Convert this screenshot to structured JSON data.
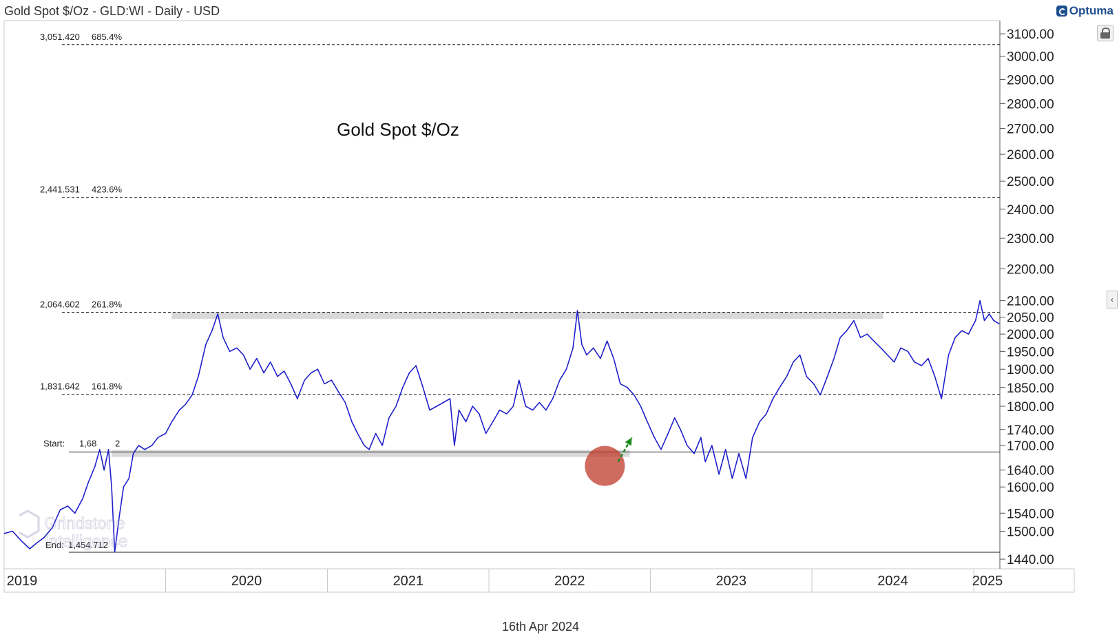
{
  "header": {
    "title": "Gold Spot $/Oz - GLD:WI - Daily - USD",
    "brand": "Optuma"
  },
  "footer": {
    "date": "16th Apr 2024"
  },
  "watermark": {
    "text_line1": "Grindstone",
    "text_line2": "Intelligence"
  },
  "icons": {
    "lock": "lock-icon",
    "collapse": "chevron-left-icon",
    "brand": "optuma-logo-icon"
  },
  "colors": {
    "price_line": "#1f1fcc",
    "fib_line": "#222222",
    "zone_fill": "#d9d9d9",
    "circle_fill": "#c0392b",
    "arrow": "#1a8a1a"
  },
  "chart_data": {
    "type": "line",
    "title": "Gold Spot $/Oz",
    "xlabel": "",
    "ylabel": "",
    "y_scale": "log",
    "ylim": [
      1420,
      3160
    ],
    "x_range": [
      "2019-01-01",
      "2025-03-01"
    ],
    "x_ticks": [
      "2019",
      "2020",
      "2021",
      "2022",
      "2023",
      "2024",
      "2025"
    ],
    "y_ticks": [
      3100,
      3000,
      2900,
      2800,
      2700,
      2600,
      2500,
      2400,
      2300,
      2200,
      2100,
      2050,
      2000,
      1950,
      1900,
      1850,
      1800,
      1740,
      1700,
      1640,
      1600,
      1540,
      1500,
      1440
    ],
    "y_tick_labels": [
      "3100.00",
      "3000.00",
      "2900.00",
      "2800.00",
      "2700.00",
      "2600.00",
      "2500.00",
      "2400.00",
      "2300.00",
      "2200.00",
      "2100.00",
      "2050.00",
      "2000.00",
      "1950.00",
      "1900.00",
      "1850.00",
      "1800.00",
      "1740.00",
      "1700.00",
      "1640.00",
      "1600.00",
      "1540.00",
      "1500.00",
      "1440.00"
    ],
    "fib_levels": [
      {
        "price": 3051.42,
        "label": "3,051.420",
        "pct": "685.4%"
      },
      {
        "price": 2441.531,
        "label": "2,441.531",
        "pct": "423.6%"
      },
      {
        "price": 2064.602,
        "label": "2,064.602",
        "pct": "261.8%"
      },
      {
        "price": 1831.642,
        "label": "1,831.642",
        "pct": "161.8%"
      }
    ],
    "start_level": {
      "price": 1684.0,
      "label": "Start:",
      "value_text": "1,68",
      "value_tail": "2"
    },
    "end_level": {
      "price": 1454.712,
      "label": "End:",
      "value_text": "1,454.712"
    },
    "zones": [
      {
        "price": 2055,
        "x_start": "2020-01-15",
        "x_end": "2024-06-10"
      },
      {
        "price": 1680,
        "x_start": "2019-09-01",
        "x_end": "2022-11-15"
      }
    ],
    "highlight_circle": {
      "x": "2022-09-20",
      "price": 1650
    },
    "arrow": {
      "x_from": "2022-10-20",
      "price_from": 1660,
      "x_to": "2022-11-20",
      "price_to": 1720
    },
    "series": [
      {
        "points": [
          [
            "2019-01-01",
            1495
          ],
          [
            "2019-01-20",
            1500
          ],
          [
            "2019-02-10",
            1478
          ],
          [
            "2019-02-28",
            1462
          ],
          [
            "2019-03-15",
            1474
          ],
          [
            "2019-04-01",
            1486
          ],
          [
            "2019-04-20",
            1508
          ],
          [
            "2019-05-08",
            1548
          ],
          [
            "2019-05-25",
            1556
          ],
          [
            "2019-06-10",
            1540
          ],
          [
            "2019-06-28",
            1574
          ],
          [
            "2019-07-10",
            1610
          ],
          [
            "2019-07-25",
            1648
          ],
          [
            "2019-08-05",
            1690
          ],
          [
            "2019-08-15",
            1640
          ],
          [
            "2019-08-25",
            1690
          ],
          [
            "2019-09-01",
            1600
          ],
          [
            "2019-09-08",
            1455
          ],
          [
            "2019-09-18",
            1530
          ],
          [
            "2019-09-28",
            1600
          ],
          [
            "2019-10-10",
            1620
          ],
          [
            "2019-10-20",
            1680
          ],
          [
            "2019-11-01",
            1700
          ],
          [
            "2019-11-15",
            1690
          ],
          [
            "2019-12-01",
            1700
          ],
          [
            "2019-12-15",
            1720
          ],
          [
            "2020-01-01",
            1730
          ],
          [
            "2020-01-15",
            1760
          ],
          [
            "2020-02-01",
            1790
          ],
          [
            "2020-02-15",
            1805
          ],
          [
            "2020-03-01",
            1830
          ],
          [
            "2020-03-15",
            1880
          ],
          [
            "2020-04-01",
            1970
          ],
          [
            "2020-04-15",
            2010
          ],
          [
            "2020-04-28",
            2060
          ],
          [
            "2020-05-10",
            1990
          ],
          [
            "2020-05-25",
            1950
          ],
          [
            "2020-06-10",
            1960
          ],
          [
            "2020-06-25",
            1940
          ],
          [
            "2020-07-10",
            1900
          ],
          [
            "2020-07-25",
            1930
          ],
          [
            "2020-08-10",
            1890
          ],
          [
            "2020-08-25",
            1920
          ],
          [
            "2020-09-10",
            1880
          ],
          [
            "2020-09-25",
            1895
          ],
          [
            "2020-10-10",
            1860
          ],
          [
            "2020-10-25",
            1820
          ],
          [
            "2020-11-10",
            1870
          ],
          [
            "2020-11-25",
            1890
          ],
          [
            "2020-12-10",
            1900
          ],
          [
            "2020-12-25",
            1860
          ],
          [
            "2021-01-10",
            1870
          ],
          [
            "2021-01-25",
            1840
          ],
          [
            "2021-02-10",
            1810
          ],
          [
            "2021-02-25",
            1760
          ],
          [
            "2021-03-10",
            1730
          ],
          [
            "2021-03-25",
            1700
          ],
          [
            "2021-04-05",
            1690
          ],
          [
            "2021-04-20",
            1730
          ],
          [
            "2021-05-05",
            1700
          ],
          [
            "2021-05-20",
            1770
          ],
          [
            "2021-06-05",
            1800
          ],
          [
            "2021-06-20",
            1850
          ],
          [
            "2021-07-05",
            1890
          ],
          [
            "2021-07-20",
            1910
          ],
          [
            "2021-08-05",
            1850
          ],
          [
            "2021-08-20",
            1790
          ],
          [
            "2021-09-05",
            1800
          ],
          [
            "2021-09-20",
            1810
          ],
          [
            "2021-10-05",
            1820
          ],
          [
            "2021-10-15",
            1700
          ],
          [
            "2021-10-25",
            1790
          ],
          [
            "2021-11-10",
            1760
          ],
          [
            "2021-11-25",
            1800
          ],
          [
            "2021-12-10",
            1780
          ],
          [
            "2021-12-25",
            1730
          ],
          [
            "2022-01-10",
            1760
          ],
          [
            "2022-01-25",
            1790
          ],
          [
            "2022-02-10",
            1780
          ],
          [
            "2022-02-25",
            1800
          ],
          [
            "2022-03-10",
            1870
          ],
          [
            "2022-03-25",
            1800
          ],
          [
            "2022-04-10",
            1790
          ],
          [
            "2022-04-25",
            1810
          ],
          [
            "2022-05-10",
            1790
          ],
          [
            "2022-05-25",
            1820
          ],
          [
            "2022-06-10",
            1870
          ],
          [
            "2022-06-25",
            1900
          ],
          [
            "2022-07-10",
            1960
          ],
          [
            "2022-07-20",
            2070
          ],
          [
            "2022-07-30",
            1970
          ],
          [
            "2022-08-10",
            1940
          ],
          [
            "2022-08-25",
            1960
          ],
          [
            "2022-09-10",
            1930
          ],
          [
            "2022-09-25",
            1980
          ],
          [
            "2022-10-10",
            1930
          ],
          [
            "2022-10-25",
            1860
          ],
          [
            "2022-11-10",
            1850
          ],
          [
            "2022-11-25",
            1830
          ],
          [
            "2022-12-10",
            1800
          ],
          [
            "2022-12-25",
            1760
          ],
          [
            "2023-01-10",
            1720
          ],
          [
            "2023-01-25",
            1690
          ],
          [
            "2023-02-10",
            1730
          ],
          [
            "2023-02-25",
            1770
          ],
          [
            "2023-03-10",
            1740
          ],
          [
            "2023-03-25",
            1700
          ],
          [
            "2023-04-10",
            1680
          ],
          [
            "2023-04-25",
            1720
          ],
          [
            "2023-05-05",
            1660
          ],
          [
            "2023-05-20",
            1700
          ],
          [
            "2023-06-05",
            1630
          ],
          [
            "2023-06-20",
            1690
          ],
          [
            "2023-07-05",
            1620
          ],
          [
            "2023-07-20",
            1680
          ],
          [
            "2023-08-05",
            1620
          ],
          [
            "2023-08-20",
            1720
          ],
          [
            "2023-09-05",
            1760
          ],
          [
            "2023-09-20",
            1780
          ],
          [
            "2023-10-05",
            1820
          ],
          [
            "2023-10-20",
            1850
          ],
          [
            "2023-11-05",
            1880
          ],
          [
            "2023-11-20",
            1920
          ],
          [
            "2023-12-05",
            1940
          ],
          [
            "2023-12-20",
            1880
          ],
          [
            "2024-01-05",
            1860
          ],
          [
            "2024-01-20",
            1830
          ],
          [
            "2024-02-05",
            1880
          ],
          [
            "2024-02-20",
            1930
          ],
          [
            "2024-03-05",
            1990
          ],
          [
            "2024-03-20",
            2010
          ],
          [
            "2024-04-05",
            2040
          ],
          [
            "2024-04-20",
            1990
          ],
          [
            "2024-05-05",
            2000
          ],
          [
            "2024-05-20",
            1980
          ],
          [
            "2024-06-05",
            1960
          ],
          [
            "2024-06-20",
            1940
          ],
          [
            "2024-07-05",
            1920
          ],
          [
            "2024-07-20",
            1960
          ],
          [
            "2024-08-05",
            1950
          ],
          [
            "2024-08-20",
            1920
          ],
          [
            "2024-09-05",
            1910
          ],
          [
            "2024-09-20",
            1930
          ],
          [
            "2024-10-05",
            1880
          ],
          [
            "2024-10-20",
            1820
          ],
          [
            "2024-11-05",
            1940
          ],
          [
            "2024-11-20",
            1990
          ],
          [
            "2024-12-05",
            2010
          ],
          [
            "2024-12-20",
            2000
          ],
          [
            "2025-01-05",
            2040
          ],
          [
            "2025-01-15",
            2100
          ],
          [
            "2025-01-25",
            2040
          ],
          [
            "2025-02-05",
            2060
          ],
          [
            "2025-02-15",
            2040
          ],
          [
            "2025-02-28",
            2030
          ]
        ]
      }
    ]
  }
}
